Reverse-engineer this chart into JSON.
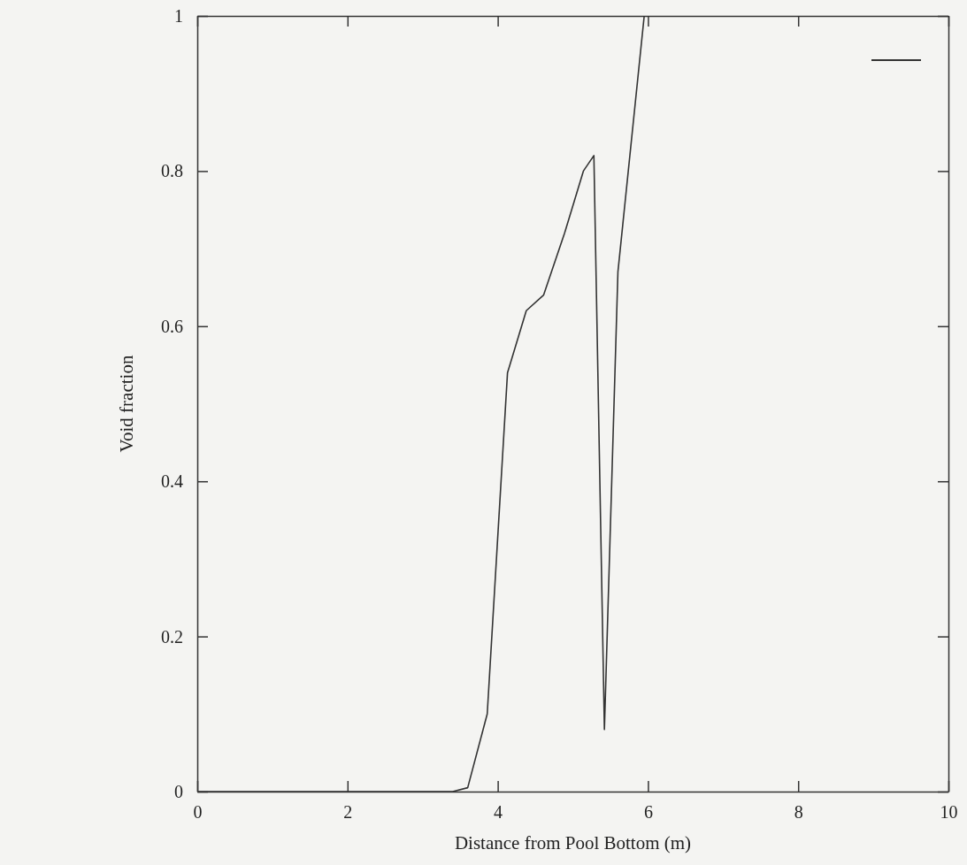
{
  "chart_data": {
    "type": "line",
    "xlabel": "Distance from Pool Bottom (m)",
    "ylabel": "Void fraction",
    "x": [
      0,
      3.4,
      3.6,
      3.86,
      4.13,
      4.38,
      4.61,
      4.89,
      5.14,
      5.28,
      5.42,
      5.6,
      5.95
    ],
    "series": [
      {
        "color": "#333333",
        "values": [
          0,
          0,
          0.005,
          0.1,
          0.54,
          0.62,
          0.64,
          0.72,
          0.8,
          0.82,
          0.08,
          0.67,
          1
        ]
      }
    ],
    "xlim": [
      0,
      10
    ],
    "xticks": [
      0,
      2,
      4,
      6,
      8,
      10
    ],
    "ylim": [
      0,
      1
    ],
    "yticks": [
      0,
      0.2,
      0.4,
      0.6,
      0.8,
      1
    ],
    "grid": false,
    "marker": "none",
    "line_style": "solid"
  }
}
